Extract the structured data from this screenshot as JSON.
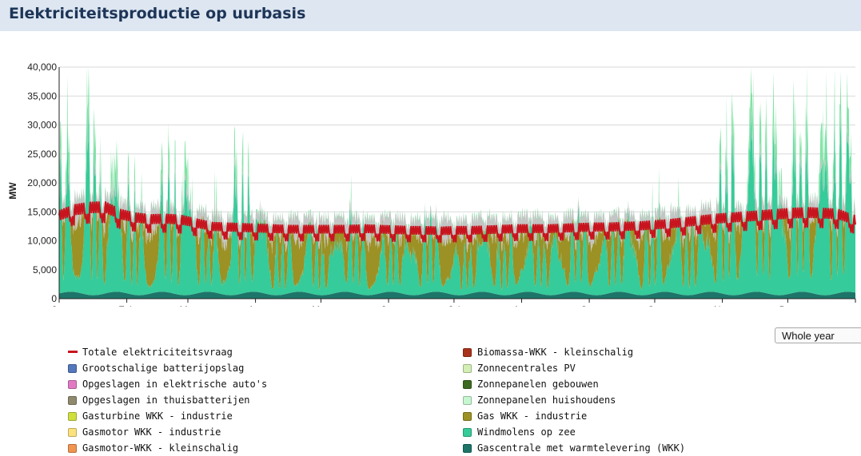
{
  "header": {
    "title": "Elektriciteitsproductie op uurbasis"
  },
  "period_select": {
    "value": "Whole year"
  },
  "legend_left": [
    {
      "label": "Totale elektriciteitsvraag",
      "color": "#c8141e",
      "kind": "line"
    },
    {
      "label": "Grootschalige batterijopslag",
      "color": "#5577bb",
      "kind": "box"
    },
    {
      "label": "Opgeslagen in elektrische auto's",
      "color": "#e27ac3",
      "kind": "box"
    },
    {
      "label": "Opgeslagen in thuisbatterijen",
      "color": "#8f8a6e",
      "kind": "box"
    },
    {
      "label": "Gasturbine WKK - industrie",
      "color": "#cfe03e",
      "kind": "box"
    },
    {
      "label": "Gasmotor WKK - industrie",
      "color": "#fbe27f",
      "kind": "box"
    },
    {
      "label": "Gasmotor-WKK - kleinschalig",
      "color": "#f09550",
      "kind": "box"
    }
  ],
  "legend_right": [
    {
      "label": "Biomassa-WKK - kleinschalig",
      "color": "#a8331a",
      "kind": "box"
    },
    {
      "label": "Zonnecentrales PV",
      "color": "#d3efb4",
      "kind": "box"
    },
    {
      "label": "Zonnepanelen gebouwen",
      "color": "#3c6a1e",
      "kind": "box"
    },
    {
      "label": "Zonnepanelen huishoudens",
      "color": "#c6f7d0",
      "kind": "box"
    },
    {
      "label": "Gas WKK - industrie",
      "color": "#9b9125",
      "kind": "box"
    },
    {
      "label": "Windmolens op zee",
      "color": "#36cb9a",
      "kind": "box"
    },
    {
      "label": "Gascentrale met warmtelevering (WKK)",
      "color": "#1d7569",
      "kind": "box"
    }
  ],
  "chart_data": {
    "type": "area",
    "ylabel": "MW",
    "ylim": [
      0,
      40000
    ],
    "yticks": [
      "0",
      "5,000",
      "10,000",
      "15,000",
      "20,000",
      "25,000",
      "30,000",
      "35,000",
      "40,000"
    ],
    "x_categories": [
      "Jan",
      "Feb",
      "Mar",
      "Apr",
      "May",
      "Jun",
      "Jul",
      "Aug",
      "Sep",
      "Oct",
      "Nov",
      "Dec"
    ],
    "grid": true,
    "demand_weekly": [
      15000,
      16000,
      16400,
      16500,
      15200,
      14600,
      14300,
      14400,
      14200,
      13600,
      13000,
      12900,
      12800,
      12700,
      12600,
      12500,
      12500,
      12500,
      12500,
      12500,
      12600,
      12500,
      12400,
      12300,
      12300,
      12200,
      12300,
      12300,
      12400,
      12500,
      12600,
      12600,
      12600,
      12700,
      12800,
      12900,
      12900,
      13000,
      13100,
      13300,
      13500,
      13800,
      14100,
      14400,
      14600,
      14800,
      15000,
      15200,
      15400,
      15500,
      15400,
      15200,
      14200
    ],
    "wind_weekly": [
      22000,
      26000,
      30000,
      15000,
      18000,
      16000,
      12000,
      20000,
      17000,
      14000,
      11000,
      22000,
      19000,
      13000,
      9000,
      10000,
      14000,
      10000,
      8000,
      15000,
      11000,
      10000,
      12000,
      8000,
      14000,
      11000,
      9000,
      8000,
      12000,
      9000,
      13000,
      10000,
      11000,
      9000,
      14000,
      12000,
      10000,
      13000,
      11000,
      14000,
      13000,
      12000,
      11000,
      19000,
      25000,
      27000,
      26000,
      24000,
      28000,
      26000,
      25000,
      27000,
      23000
    ],
    "series": [
      {
        "name": "Gascentrale met warmtelevering (WKK)"
      },
      {
        "name": "Windmolens op zee"
      },
      {
        "name": "Gas WKK - industrie"
      },
      {
        "name": "Zonnepanelen huishoudens"
      },
      {
        "name": "Totale elektriciteitsvraag"
      }
    ]
  }
}
